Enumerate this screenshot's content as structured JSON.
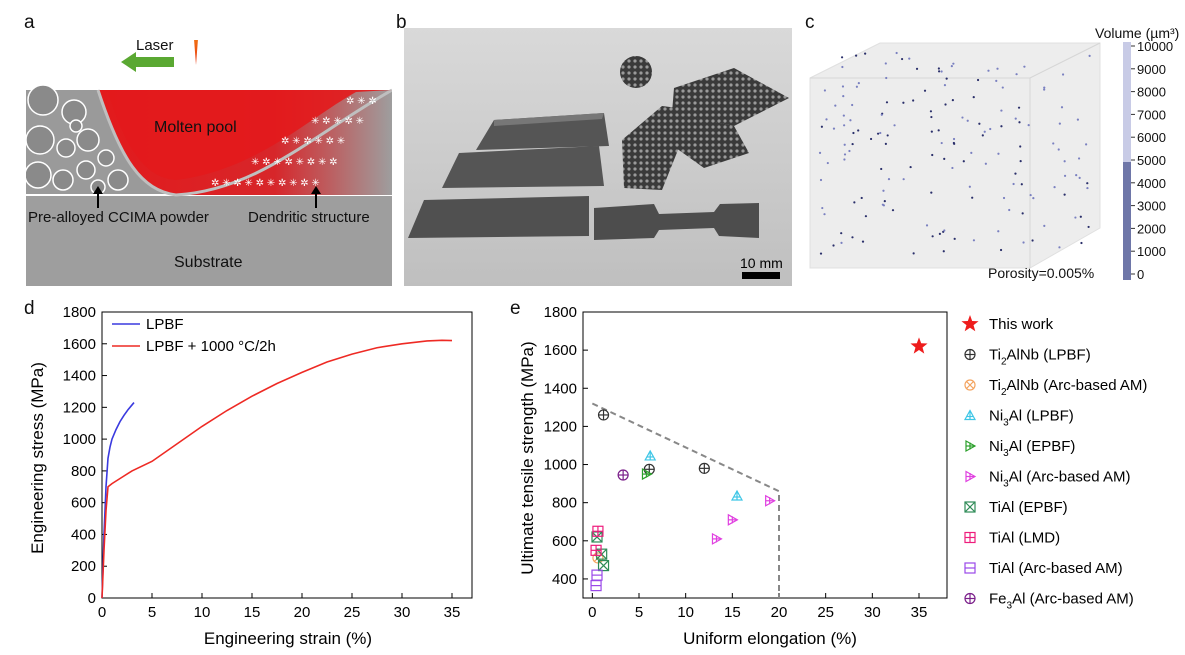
{
  "panels": {
    "a": {
      "label": "a",
      "laser": "Laser",
      "molten_pool": "Molten pool",
      "powder": "Pre-alloyed CCIMA powder",
      "dendritic": "Dendritic structure",
      "substrate": "Substrate",
      "colors": {
        "melt": "#e31a1c",
        "substrate": "#9e9e9e",
        "laser_arrow": "#5aa832"
      }
    },
    "b": {
      "label": "b",
      "scale_bar": "10 mm"
    },
    "c": {
      "label": "c",
      "colorbar_title": "Volume (µm³)",
      "colorbar_ticks": [
        "10000",
        "9000",
        "8000",
        "7000",
        "6000",
        "5000",
        "4000",
        "3000",
        "2000",
        "1000",
        "0"
      ],
      "porosity": "Porosity=0.005%"
    },
    "d": {
      "label": "d"
    },
    "e": {
      "label": "e"
    }
  },
  "chart_data": [
    {
      "id": "d",
      "type": "line",
      "xlabel": "Engineering strain (%)",
      "ylabel": "Engineering stress (MPa)",
      "xlim": [
        0,
        37
      ],
      "ylim": [
        0,
        1800
      ],
      "xticks": [
        0,
        5,
        10,
        15,
        20,
        25,
        30,
        35
      ],
      "yticks": [
        0,
        200,
        400,
        600,
        800,
        1000,
        1200,
        1400,
        1600,
        1800
      ],
      "legend_position": "top-left",
      "series": [
        {
          "name": "LPBF",
          "color": "#3a3adf",
          "x": [
            0,
            0.2,
            0.4,
            0.6,
            0.8,
            1.0,
            1.4,
            1.8,
            2.2,
            2.6,
            3.0,
            3.2
          ],
          "y": [
            0,
            400,
            700,
            880,
            950,
            1000,
            1060,
            1110,
            1150,
            1185,
            1215,
            1230
          ]
        },
        {
          "name": "LPBF + 1000 °C/2h",
          "color": "#ee2a24",
          "x": [
            0,
            0.2,
            0.4,
            0.6,
            1,
            2,
            3,
            5,
            7.5,
            10,
            12.5,
            15,
            17.5,
            20,
            22.5,
            25,
            27.5,
            30,
            32.5,
            34,
            35
          ],
          "y": [
            0,
            300,
            550,
            700,
            720,
            760,
            800,
            860,
            970,
            1080,
            1180,
            1270,
            1350,
            1420,
            1485,
            1535,
            1575,
            1600,
            1618,
            1622,
            1620
          ]
        }
      ]
    },
    {
      "id": "e",
      "type": "scatter",
      "xlabel": "Uniform elongation (%)",
      "ylabel": "Ultimate tensile strength (MPa)",
      "xlim": [
        -1,
        38
      ],
      "ylim": [
        300,
        1800
      ],
      "xticks": [
        0,
        5,
        10,
        15,
        20,
        25,
        30,
        35
      ],
      "yticks": [
        400,
        600,
        800,
        1000,
        1200,
        1400,
        1600,
        1800
      ],
      "legend_position": "right",
      "series": [
        {
          "name": "This work",
          "color": "#ee1c1c",
          "marker": "star",
          "points": [
            [
              35,
              1620
            ]
          ]
        },
        {
          "name": "Ti2AlNb (LPBF)",
          "label_main": "Ti",
          "label_sub": "2",
          "label_rest": "AlNb (LPBF)",
          "color": "#333333",
          "marker": "circleplus",
          "points": [
            [
              1.2,
              1260
            ],
            [
              6.1,
              975
            ],
            [
              12,
              980
            ]
          ]
        },
        {
          "name": "Ti2AlNb (Arc-based AM)",
          "label_main": "Ti",
          "label_sub": "2",
          "label_rest": "AlNb (Arc-based AM)",
          "color": "#f4a460",
          "marker": "circlex",
          "points": [
            [
              0.6,
              510
            ]
          ]
        },
        {
          "name": "Ni3Al (LPBF)",
          "label_main": "Ni",
          "label_sub": "3",
          "label_rest": "Al (LPBF)",
          "color": "#3ec6e6",
          "marker": "triup",
          "points": [
            [
              6.2,
              1045
            ],
            [
              15.5,
              835
            ]
          ]
        },
        {
          "name": "Ni3Al (EPBF)",
          "label_main": "Ni",
          "label_sub": "3",
          "label_rest": "Al (EPBF)",
          "color": "#2ca02c",
          "marker": "triright",
          "points": [
            [
              5.8,
              950
            ]
          ]
        },
        {
          "name": "Ni3Al (Arc-based AM)",
          "label_main": "Ni",
          "label_sub": "3",
          "label_rest": "Al (Arc-based AM)",
          "color": "#e040e0",
          "marker": "triright",
          "points": [
            [
              13.3,
              610
            ],
            [
              15,
              710
            ],
            [
              19,
              810
            ]
          ]
        },
        {
          "name": "TiAl (EPBF)",
          "label_main": "TiAl (EPBF)",
          "label_sub": "",
          "label_rest": "",
          "color": "#2e8b57",
          "marker": "squarex",
          "points": [
            [
              0.5,
              620
            ],
            [
              1,
              530
            ],
            [
              1.2,
              470
            ]
          ]
        },
        {
          "name": "TiAl (LMD)",
          "label_main": "TiAl (LMD)",
          "label_sub": "",
          "label_rest": "",
          "color": "#ee1c7c",
          "marker": "squareplus",
          "points": [
            [
              0.6,
              650
            ],
            [
              0.4,
              550
            ]
          ]
        },
        {
          "name": "TiAl (Arc-based AM)",
          "label_main": "TiAl (Arc-based AM)",
          "label_sub": "",
          "label_rest": "",
          "color": "#9a48e8",
          "marker": "squareminus",
          "points": [
            [
              0.5,
              420
            ],
            [
              0.4,
              365
            ]
          ]
        },
        {
          "name": "Fe3Al (Arc-based AM)",
          "label_main": "Fe",
          "label_sub": "3",
          "label_rest": "Al (Arc-based AM)",
          "color": "#7b1f8a",
          "marker": "circleplus",
          "points": [
            [
              3.3,
              945
            ]
          ]
        }
      ],
      "boundary": {
        "color": "#888888",
        "x": [
          0,
          20,
          20
        ],
        "y": [
          1320,
          860,
          300
        ]
      }
    }
  ]
}
